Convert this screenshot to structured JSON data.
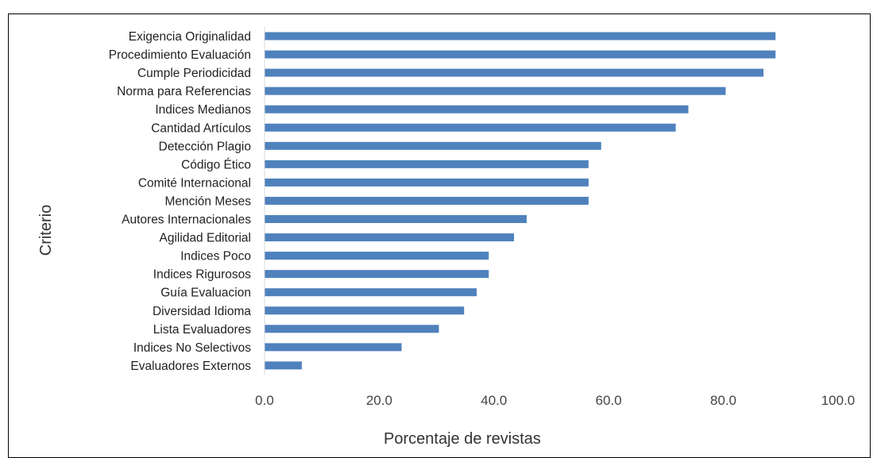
{
  "chart_data": {
    "type": "bar",
    "orientation": "horizontal",
    "categories": [
      "Exigencia Originalidad",
      "Procedimiento Evaluación",
      "Cumple Periodicidad",
      "Norma para Referencias",
      "Indices Medianos",
      "Cantidad Artículos",
      "Detección Plagio",
      "Código Ético",
      "Comité Internacional",
      "Mención Meses",
      "Autores Internacionales",
      "Agilidad Editorial",
      "Indices Poco",
      "Indices Rigurosos",
      "Guía Evaluacion",
      "Diversidad Idioma",
      "Lista Evaluadores",
      "Indices No Selectivos",
      "Evaluadores Externos"
    ],
    "values": [
      89.1,
      89.1,
      87.0,
      80.4,
      73.9,
      71.7,
      58.7,
      56.5,
      56.5,
      56.5,
      45.7,
      43.5,
      39.1,
      39.1,
      37.0,
      34.8,
      30.4,
      23.9,
      6.5
    ],
    "xlim": [
      0,
      100
    ],
    "xticks": [
      "0.0",
      "20.0",
      "40.0",
      "60.0",
      "80.0",
      "100.0"
    ],
    "xlabel": "Porcentaje de revistas",
    "ylabel": "Criterio",
    "bar_color": "#4f81bd",
    "grid": false,
    "legend": "none"
  }
}
